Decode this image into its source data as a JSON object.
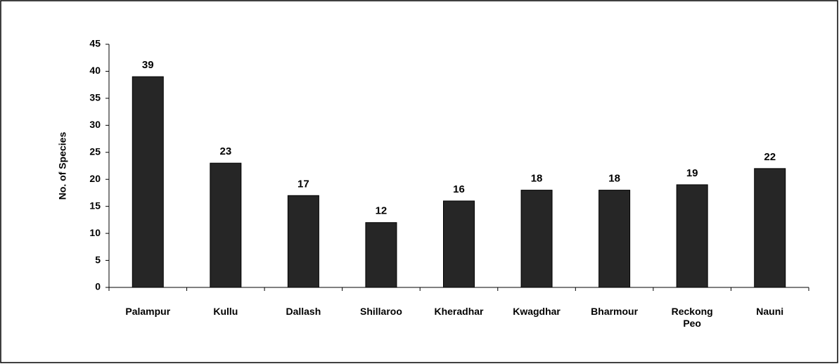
{
  "chart_data": {
    "type": "bar",
    "y_label": "No. of Species",
    "categories": [
      "Palampur",
      "Kullu",
      "Dallash",
      "Shillaroo",
      "Kheradhar",
      "Kwagdhar",
      "Bharmour",
      "Reckong Peo",
      "Nauni"
    ],
    "values": [
      39,
      23,
      17,
      12,
      16,
      18,
      18,
      19,
      22
    ],
    "color": "#262626",
    "ylim": [
      0,
      45
    ],
    "yticks": [
      0,
      5,
      10,
      15,
      20,
      25,
      30,
      35,
      40,
      45
    ],
    "grid": false,
    "data_labels": true
  }
}
